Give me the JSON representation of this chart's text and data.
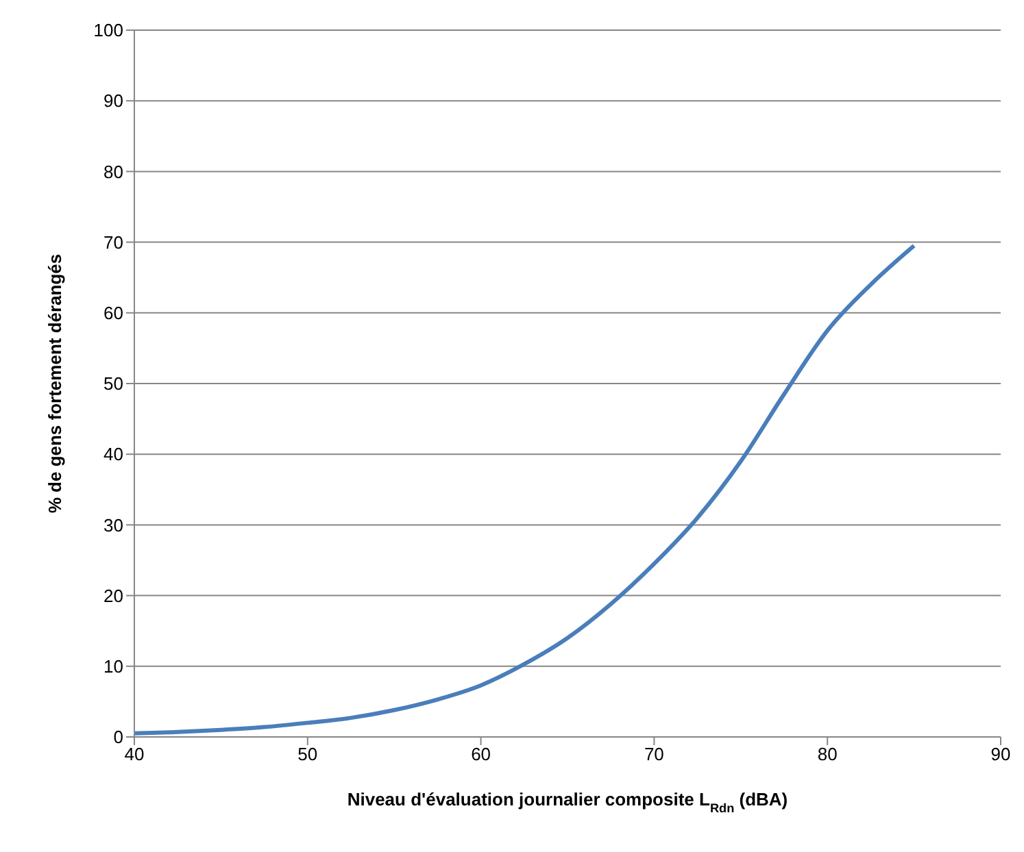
{
  "chart_data": {
    "type": "line",
    "xlabel": "Niveau d'évaluation journalier composite L$_{Rdn}$ (dBA)",
    "ylabel": "% de gens fortement dérangés",
    "x": [
      40,
      42.5,
      45,
      47.5,
      50,
      52.5,
      55,
      57.5,
      60,
      62.5,
      65,
      67.5,
      70,
      72.5,
      75,
      77.5,
      80,
      82.5,
      85
    ],
    "series": [
      {
        "color": "#4a7ebb",
        "values": [
          0.5,
          0.7,
          1.0,
          1.4,
          2.0,
          2.7,
          3.8,
          5.3,
          7.3,
          10.3,
          14,
          18.8,
          24.5,
          31,
          39,
          48.5,
          57.5,
          64,
          69.5
        ]
      }
    ],
    "xlim": [
      40,
      90
    ],
    "xticks": [
      40,
      50,
      60,
      70,
      80,
      90
    ],
    "ylim": [
      0,
      100
    ],
    "yticks": [
      0,
      10,
      20,
      30,
      40,
      50,
      60,
      70,
      80,
      90,
      100
    ],
    "grid": "y",
    "legend": false,
    "marker": "none",
    "line_style": "solid"
  }
}
